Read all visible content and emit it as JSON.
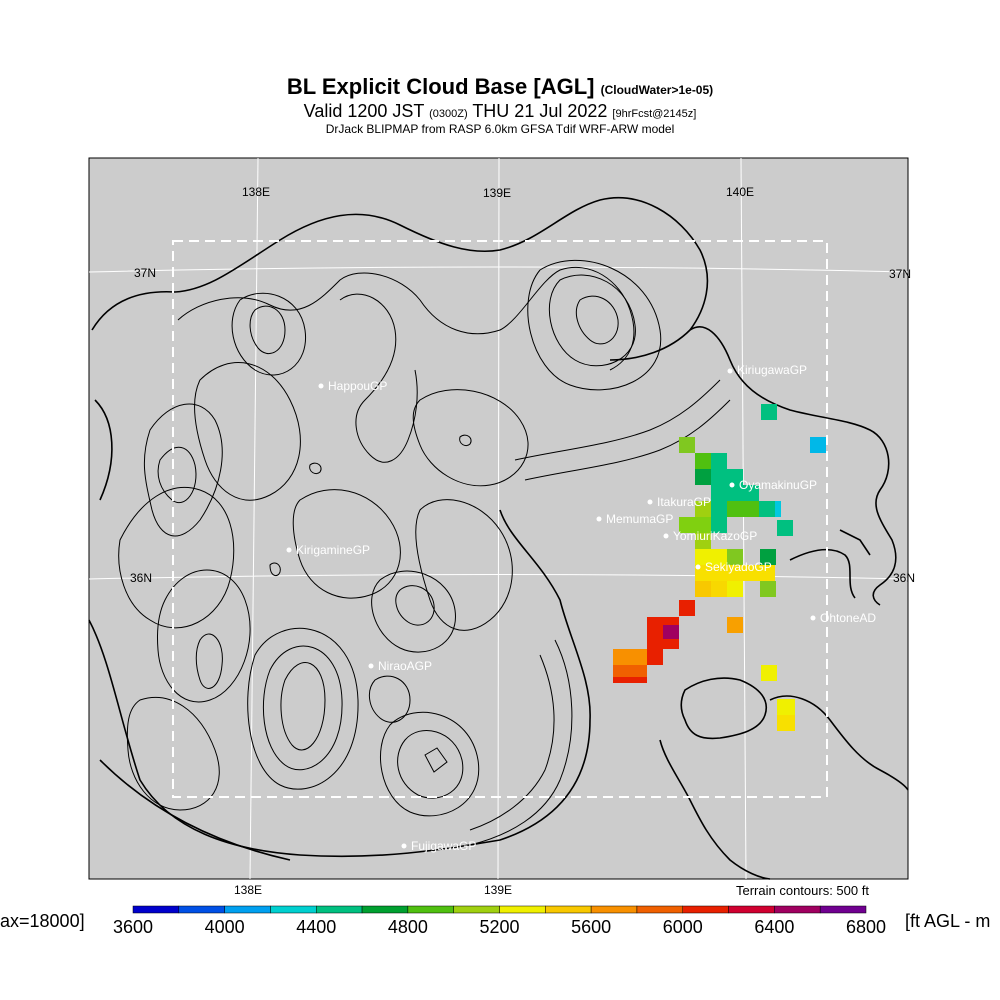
{
  "title": {
    "main": "BL Explicit Cloud Base [AGL]",
    "main_note": "(CloudWater>1e-05)",
    "valid": "Valid 1200 JST",
    "valid_z": "(0300Z)",
    "valid_date": "THU 21 Jul 2022",
    "valid_fcst": "[9hrFcst@2145z]",
    "credit": "DrJack BLIPMAP from RASP 6.0km GFSA Tdif WRF-ARW model"
  },
  "grid_labels": {
    "top_138": "138E",
    "top_139": "139E",
    "top_140": "140E",
    "bottom_138": "138E",
    "bottom_139": "139E",
    "left_37": "37N",
    "right_37": "37N",
    "left_36": "36N",
    "right_36": "36N"
  },
  "places": [
    {
      "name": "KiriugawaGP"
    },
    {
      "name": "HappouGP"
    },
    {
      "name": "OyamakinuGP"
    },
    {
      "name": "ItakuraGP"
    },
    {
      "name": "MemumaGP"
    },
    {
      "name": "YomiuriKazoGP"
    },
    {
      "name": "KirigamineGP"
    },
    {
      "name": "SekiyadoGP"
    },
    {
      "name": "OhtoneAD"
    },
    {
      "name": "NiraoAGP"
    },
    {
      "name": "FujigawaGP"
    }
  ],
  "terrain_note": "Terrain contours: 500 ft",
  "colorbar": {
    "max_label": "ax=18000]",
    "unit_label": "[ft AGL - m",
    "tick_labels": [
      "3600",
      "4000",
      "4400",
      "4800",
      "5200",
      "5600",
      "6000",
      "6400",
      "6800"
    ],
    "colors": [
      "#0000cc",
      "#0050e6",
      "#00a0f0",
      "#00d0d0",
      "#00c080",
      "#00a030",
      "#50c010",
      "#a0d010",
      "#f0f000",
      "#f8c800",
      "#f89000",
      "#f06000",
      "#e82000",
      "#d00030",
      "#a00060",
      "#700090"
    ]
  },
  "map_colors": {
    "background": "#cccccc",
    "contour": "#000000",
    "grid": "#ffffff"
  }
}
